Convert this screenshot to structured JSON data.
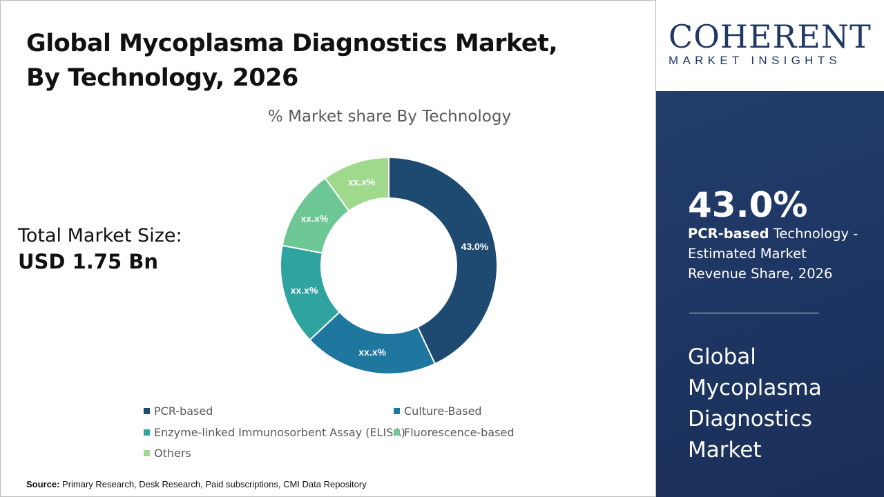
{
  "title": "Global Mycoplasma Diagnostics Market, By Technology, 2026",
  "total_market": {
    "label": "Total Market Size:",
    "value": "USD 1.75 Bn"
  },
  "source": {
    "label": "Source:",
    "text": " Primary Research, Desk Research, Paid subscriptions, CMI Data Repository"
  },
  "logo": {
    "main": "COHERENT",
    "sub": "MARKET INSIGHTS"
  },
  "sidebar": {
    "kpi": "43.0%",
    "kpi_bold": "PCR-based",
    "kpi_rest": " Technology - Estimated Market Revenue Share, 2026",
    "market_name": "Global Mycoplasma Diagnostics Market"
  },
  "chart_data": {
    "type": "pie",
    "donut": true,
    "title": "% Market share By Technology",
    "categories": [
      "PCR-based",
      "Culture-Based",
      "Enzyme-linked Immunosorbent Assay (ELISA)",
      "Fluorescence-based",
      "Others"
    ],
    "values": [
      43.0,
      20,
      15,
      12,
      10
    ],
    "data_labels": [
      "43.0%",
      "xx.x%",
      "xx.x%",
      "xx.x%",
      "xx.x%"
    ],
    "colors": [
      "#1e4a72",
      "#1f77a0",
      "#2fa3a0",
      "#6cc795",
      "#9ed98c"
    ],
    "legend": "bottom"
  }
}
